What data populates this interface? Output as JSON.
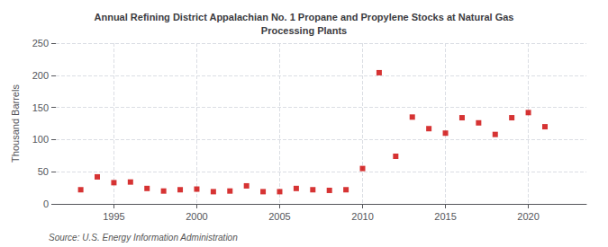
{
  "chart_data": {
    "type": "scatter",
    "title": "Annual Refining District Appalachian No. 1 Propane and Propylene Stocks at Natural Gas\nProcessing Plants",
    "y_label": "Thousand Barrels",
    "annotation": "Source: U.S. Energy Information Administration",
    "x": [
      1993,
      1994,
      1995,
      1996,
      1997,
      1998,
      1999,
      2000,
      2001,
      2002,
      2003,
      2004,
      2005,
      2006,
      2007,
      2008,
      2009,
      2010,
      2011,
      2012,
      2013,
      2014,
      2015,
      2016,
      2017,
      2018,
      2019,
      2020,
      2021
    ],
    "values": [
      22,
      42,
      33,
      34,
      24,
      20,
      22,
      23,
      19,
      20,
      28,
      19,
      19,
      24,
      22,
      21,
      22,
      55,
      204,
      74,
      135,
      117,
      110,
      134,
      126,
      108,
      134,
      142,
      120
    ],
    "color": "#cc0000",
    "marker": "square",
    "xlim": [
      1991.5,
      2023.5
    ],
    "xticks": [
      1995,
      2000,
      2005,
      2010,
      2015,
      2020
    ],
    "ylim": [
      0,
      250
    ],
    "yticks": [
      0,
      50,
      100,
      150,
      200,
      250
    ],
    "grid": true
  }
}
